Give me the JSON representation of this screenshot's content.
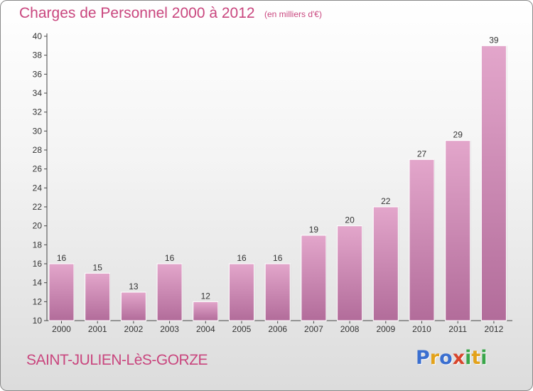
{
  "title": "Charges de Personnel 2000 à 2012",
  "subtitle": "(en milliers d'€)",
  "place": "SAINT-JULIEN-LèS-GORZE",
  "logo": {
    "text": "Proxiti",
    "letters": [
      {
        "ch": "P",
        "color": "#3b6fd0"
      },
      {
        "ch": "r",
        "color": "#e3a21a"
      },
      {
        "ch": "o",
        "color": "#3b6fd0"
      },
      {
        "ch": "x",
        "color": "#d8452c"
      },
      {
        "ch": "i",
        "color": "#3aa64a"
      },
      {
        "ch": "t",
        "color": "#e3a21a"
      },
      {
        "ch": "i",
        "color": "#3aa64a"
      }
    ]
  },
  "colors": {
    "bar_top": "#e3a6cb",
    "bar_bottom": "#b26c9a",
    "accent": "#c9467e"
  },
  "chart_data": {
    "type": "bar",
    "categories": [
      "2000",
      "2001",
      "2002",
      "2003",
      "2004",
      "2005",
      "2006",
      "2007",
      "2008",
      "2009",
      "2010",
      "2011",
      "2012"
    ],
    "values": [
      16,
      15,
      13,
      16,
      12,
      16,
      16,
      19,
      20,
      22,
      27,
      29,
      39
    ],
    "ylim": [
      10,
      40
    ],
    "yticks": [
      10,
      12,
      14,
      16,
      18,
      20,
      22,
      24,
      26,
      28,
      30,
      32,
      34,
      36,
      38,
      40
    ],
    "grid": false,
    "title": "Charges de Personnel 2000 à 2012",
    "xlabel": "",
    "ylabel": ""
  }
}
